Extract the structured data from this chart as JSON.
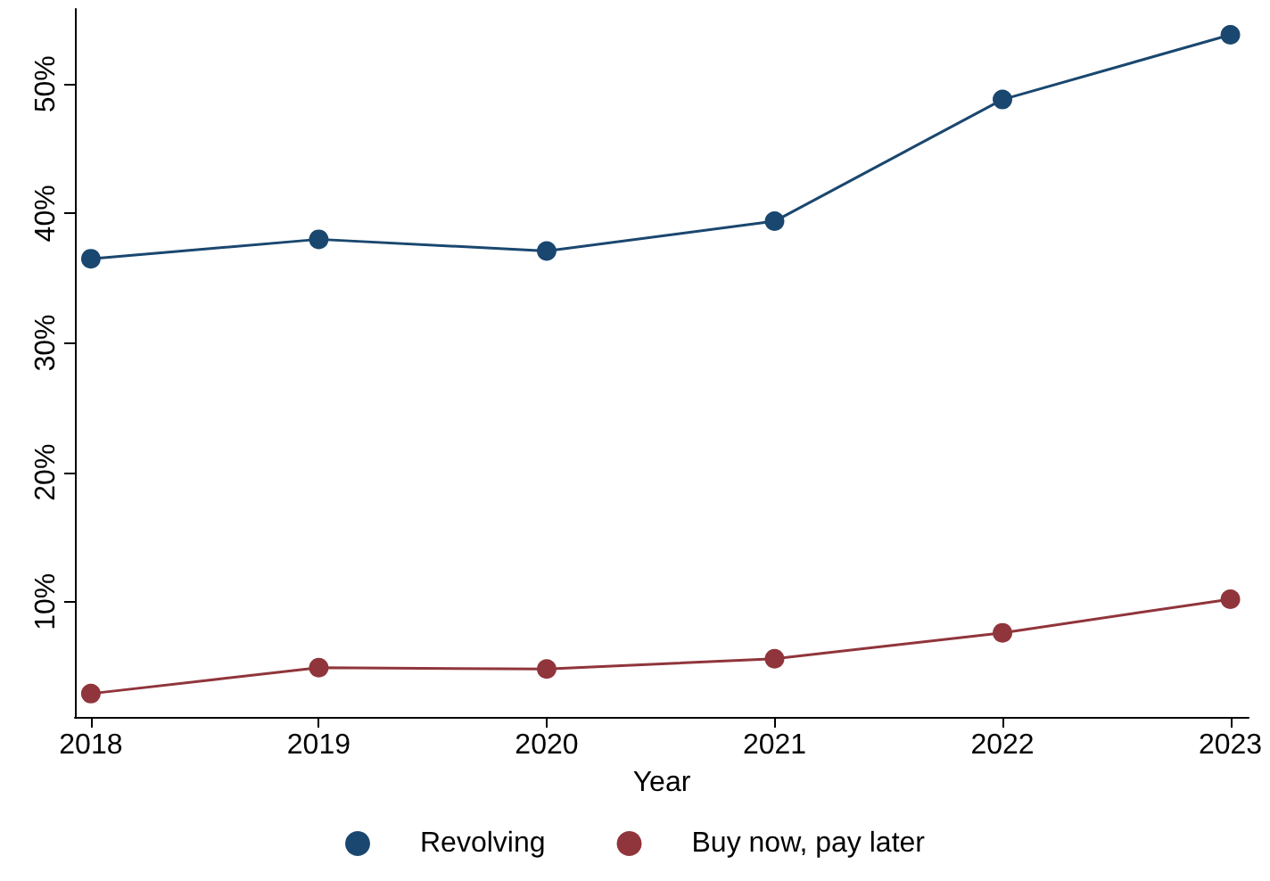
{
  "chart_data": {
    "type": "line",
    "xlabel": "Year",
    "x": [
      2018,
      2019,
      2020,
      2021,
      2022,
      2023
    ],
    "series": [
      {
        "name": "Revolving",
        "color": "#1a476f",
        "values": [
          36.5,
          38.0,
          37.1,
          39.4,
          48.8,
          53.8
        ]
      },
      {
        "name": "Buy now, pay later",
        "color": "#90353b",
        "values": [
          2.9,
          4.9,
          4.8,
          5.6,
          7.6,
          10.2
        ]
      }
    ],
    "xlim": [
      2017.93,
      2023.08
    ],
    "xticks": [
      2018,
      2019,
      2020,
      2021,
      2022,
      2023
    ],
    "ylim": [
      1.1,
      55.8
    ],
    "yticks": [
      {
        "value": 10,
        "label": "10%"
      },
      {
        "value": 20,
        "label": "20%"
      },
      {
        "value": 30,
        "label": "30%"
      },
      {
        "value": 40,
        "label": "40%"
      },
      {
        "value": 50,
        "label": "50%"
      }
    ],
    "grid": false,
    "legend": "bottom",
    "marker": "circle",
    "line_style": "solid"
  }
}
